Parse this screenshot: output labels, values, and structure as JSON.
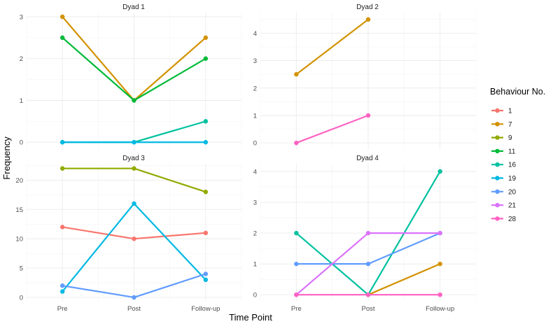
{
  "chart_data": {
    "type": "line",
    "title": "",
    "xlabel": "Time Point",
    "ylabel": "Frequency",
    "categories": [
      "Pre",
      "Post",
      "Follow-up"
    ],
    "legend": {
      "title": "Behaviour No.",
      "entries": [
        {
          "label": "1",
          "color": "#F8766D"
        },
        {
          "label": "7",
          "color": "#D39200"
        },
        {
          "label": "9",
          "color": "#93AA00"
        },
        {
          "label": "11",
          "color": "#00BA38"
        },
        {
          "label": "16",
          "color": "#00C19F"
        },
        {
          "label": "19",
          "color": "#00B9E3"
        },
        {
          "label": "20",
          "color": "#619CFF"
        },
        {
          "label": "21",
          "color": "#DB72FB"
        },
        {
          "label": "28",
          "color": "#FF61C3"
        }
      ]
    },
    "facets": [
      {
        "title": "Dyad 1",
        "ylim": [
          -0.18,
          3.1
        ],
        "yticks": [
          0,
          1,
          2,
          3
        ],
        "series": [
          {
            "name": "7",
            "values": [
              3,
              1,
              2.5
            ]
          },
          {
            "name": "11",
            "values": [
              2.5,
              1,
              2
            ]
          },
          {
            "name": "16",
            "values": [
              0,
              0,
              0.5
            ]
          },
          {
            "name": "19",
            "values": [
              0,
              0,
              0
            ]
          }
        ]
      },
      {
        "title": "Dyad 2",
        "ylim": [
          -0.25,
          4.75
        ],
        "yticks": [
          0,
          1,
          2,
          3,
          4
        ],
        "series": [
          {
            "name": "7",
            "values": [
              2.5,
              4.5,
              null
            ]
          },
          {
            "name": "28",
            "values": [
              0,
              1,
              null
            ]
          }
        ]
      },
      {
        "title": "Dyad 3",
        "ylim": [
          -0.6,
          22.8
        ],
        "yticks": [
          0,
          5,
          10,
          15,
          20
        ],
        "series": [
          {
            "name": "1",
            "values": [
              12,
              10,
              11
            ]
          },
          {
            "name": "9",
            "values": [
              22,
              22,
              18
            ]
          },
          {
            "name": "19",
            "values": [
              1,
              16,
              3
            ]
          },
          {
            "name": "20",
            "values": [
              2,
              0,
              4
            ]
          }
        ]
      },
      {
        "title": "Dyad 4",
        "ylim": [
          -0.2,
          4.25
        ],
        "yticks": [
          0,
          1,
          2,
          3,
          4
        ],
        "series": [
          {
            "name": "7",
            "values": [
              null,
              0,
              1
            ]
          },
          {
            "name": "16",
            "values": [
              2,
              0,
              4
            ]
          },
          {
            "name": "20",
            "values": [
              1,
              1,
              2
            ]
          },
          {
            "name": "21",
            "values": [
              0,
              2,
              2
            ]
          },
          {
            "name": "28",
            "values": [
              0,
              0,
              0
            ]
          }
        ]
      }
    ]
  }
}
